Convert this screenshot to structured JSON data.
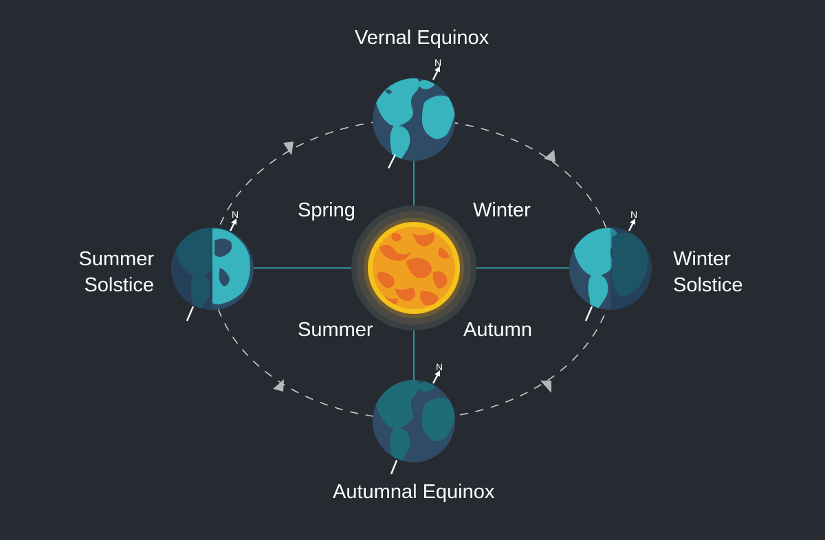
{
  "labels": {
    "vernal_equinox": "Vernal Equinox",
    "autumnal_equinox": "Autumnal Equinox",
    "summer_solstice_line1": "Summer",
    "summer_solstice_line2": "Solstice",
    "winter_solstice_line1": "Winter",
    "winter_solstice_line2": "Solstice",
    "season_spring": "Spring",
    "season_winter": "Winter",
    "season_summer": "Summer",
    "season_autumn": "Autumn"
  },
  "north_marker": "N",
  "colors": {
    "background": "#252b31",
    "orbit": "#c9cdd1",
    "axis_lines": "#3aa8b4",
    "sun_core": "#f0a020",
    "sun_ring": "#f5c21a",
    "sun_spots": "#e8652a",
    "ocean_dark": "#2f4b66",
    "land_light": "#37b4be",
    "land_dark": "#1f6b78"
  }
}
